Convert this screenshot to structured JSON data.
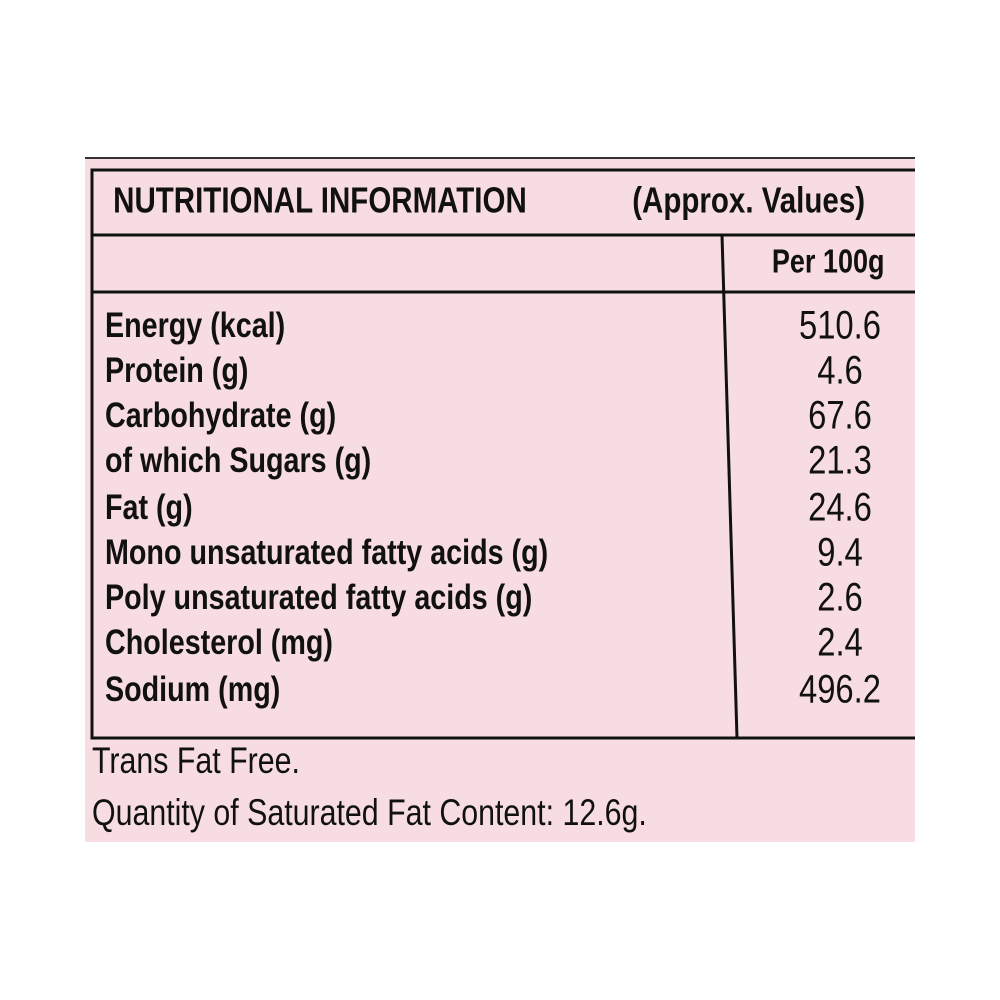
{
  "title": "NUTRITIONAL INFORMATION",
  "subtitle": "(Approx. Values)",
  "column_header": "Per 100g",
  "rows": [
    [
      "Energy (kcal)",
      "510.6"
    ],
    [
      "Protein (g)",
      "4.6"
    ],
    [
      "Carbohydrate (g)",
      "67.6"
    ],
    [
      "of which Sugars (g)",
      "21.3"
    ],
    [
      "Fat (g)",
      "24.6"
    ],
    [
      "Mono unsaturated fatty acids (g)",
      "9.4"
    ],
    [
      "Poly unsaturated fatty acids (g)",
      "2.6"
    ],
    [
      "Cholesterol (mg)",
      "2.4"
    ],
    [
      "Sodium (mg)",
      "496.2"
    ]
  ],
  "notes": [
    "Trans Fat Free.",
    "Quantity of Saturated Fat Content: 12.6g."
  ]
}
